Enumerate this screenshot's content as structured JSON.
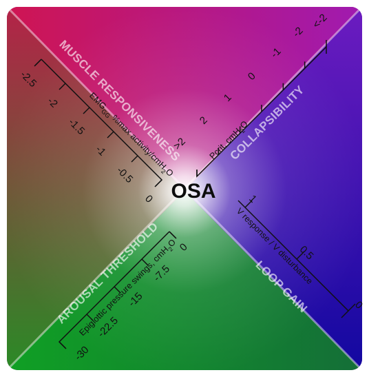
{
  "center_label": "OSA",
  "traits": {
    "muscle_responsiveness": {
      "title": "MUSCLE RESPONSIVENESS",
      "unit": "EMG",
      "unit_sub": "GG",
      "unit_rest": " %max activity/cmH",
      "unit_h2o_sub": "2",
      "unit_end": "O",
      "ticks": [
        "-2.5",
        "-2",
        "-1.5",
        "-1",
        "-0.5",
        "0"
      ]
    },
    "collapsibility": {
      "title": "COLLAPSIBILITY",
      "unit": "Pcrit, cmH",
      "unit_sub": "2",
      "unit_end": "O",
      "ticks": [
        ">2",
        "2",
        "1",
        "0",
        "-1",
        "-2",
        "<-2"
      ]
    },
    "arousal_threshold": {
      "title": "AROUSAL THRESHOLD",
      "unit": "Epiglottic pressure swings, cmH",
      "unit_sub": "2",
      "unit_end": "O",
      "ticks": [
        "0",
        "-7.5",
        "-15",
        "-22.5",
        "-30"
      ]
    },
    "loop_gain": {
      "title": "LOOP GAIN",
      "unit": "V response / V disturbance",
      "ticks": [
        "1",
        "0.5",
        "0"
      ]
    }
  },
  "colors": {
    "top": "#c8145a",
    "right": "#2c1aa2",
    "bottom_left": "#0aa020",
    "bottom_right": "#120b9c"
  }
}
